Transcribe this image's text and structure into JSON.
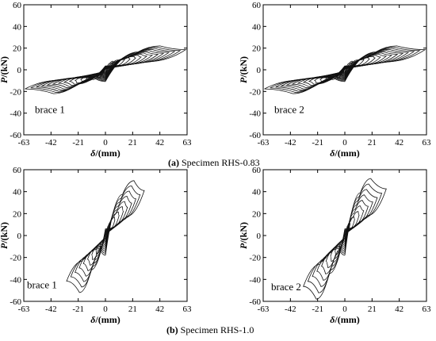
{
  "captions": [
    {
      "letter": "(a)",
      "text": " Specimen RHS-0.83"
    },
    {
      "letter": "(b)",
      "text": " Specimen RHS-1.0"
    }
  ],
  "chart_data": [
    {
      "type": "line",
      "annotation": "brace 1",
      "xlabel_symbol": "δ",
      "xlabel_unit": "/(mm)",
      "ylabel_symbol": "P",
      "ylabel_unit": "/(kN)",
      "xlim": [
        -63,
        63
      ],
      "ylim": [
        -60,
        60
      ],
      "xticks": [
        "-63",
        "-42",
        "-21",
        "0",
        "21",
        "42",
        "63"
      ],
      "yticks": [
        "60",
        "40",
        "20",
        "0",
        "-20",
        "-40",
        "-60"
      ],
      "loops": {
        "count": 14,
        "amp_start": 6,
        "amp_end": 62,
        "peak_pos_start": 8,
        "peak_pos_end": 22,
        "peak_pos_x_end": 42,
        "peak_neg_start": -8,
        "peak_neg_end": -22,
        "peak_neg_x_end": -40,
        "residual_end": 18
      }
    },
    {
      "type": "line",
      "annotation": "brace 2",
      "xlabel_symbol": "δ",
      "xlabel_unit": "/(mm)",
      "ylabel_symbol": "P",
      "ylabel_unit": "/(kN)",
      "xlim": [
        -63,
        63
      ],
      "ylim": [
        -60,
        60
      ],
      "xticks": [
        "-63",
        "-42",
        "-21",
        "0",
        "21",
        "42",
        "63"
      ],
      "yticks": [
        "60",
        "40",
        "20",
        "0",
        "-20",
        "-40",
        "-60"
      ],
      "loops": {
        "count": 14,
        "amp_start": 6,
        "amp_end": 62,
        "peak_pos_start": 8,
        "peak_pos_end": 22,
        "peak_pos_x_end": 40,
        "peak_neg_start": -8,
        "peak_neg_end": -22,
        "peak_neg_x_end": -40,
        "residual_end": 18
      }
    },
    {
      "type": "line",
      "annotation": "brace 1",
      "xlabel_symbol": "δ",
      "xlabel_unit": "/(mm)",
      "ylabel_symbol": "P",
      "ylabel_unit": "/(kN)",
      "xlim": [
        -63,
        63
      ],
      "ylim": [
        -60,
        60
      ],
      "xticks": [
        "-63",
        "-42",
        "-21",
        "0",
        "21",
        "42",
        "63"
      ],
      "yticks": [
        "60",
        "40",
        "20",
        "0",
        "-20",
        "-40",
        "-60"
      ],
      "loops": {
        "count": 9,
        "amp_start": 4,
        "amp_end": 30,
        "peak_pos_start": 12,
        "peak_pos_end": 50,
        "peak_pos_x_end": 22,
        "peak_neg_start": -12,
        "peak_neg_end": -52,
        "peak_neg_x_end": -20,
        "residual_end": 30
      }
    },
    {
      "type": "line",
      "annotation": "brace 2",
      "xlabel_symbol": "δ",
      "xlabel_unit": "/(mm)",
      "ylabel_symbol": "P",
      "ylabel_unit": "/(kN)",
      "xlim": [
        -63,
        63
      ],
      "ylim": [
        -60,
        60
      ],
      "xticks": [
        "-63",
        "-42",
        "-21",
        "0",
        "21",
        "42",
        "63"
      ],
      "yticks": [
        "60",
        "40",
        "20",
        "0",
        "-20",
        "-40",
        "-60"
      ],
      "loops": {
        "count": 9,
        "amp_start": 4,
        "amp_end": 32,
        "peak_pos_start": 12,
        "peak_pos_end": 52,
        "peak_pos_x_end": 20,
        "peak_neg_start": -12,
        "peak_neg_end": -58,
        "peak_neg_x_end": -22,
        "residual_end": 30
      }
    }
  ]
}
